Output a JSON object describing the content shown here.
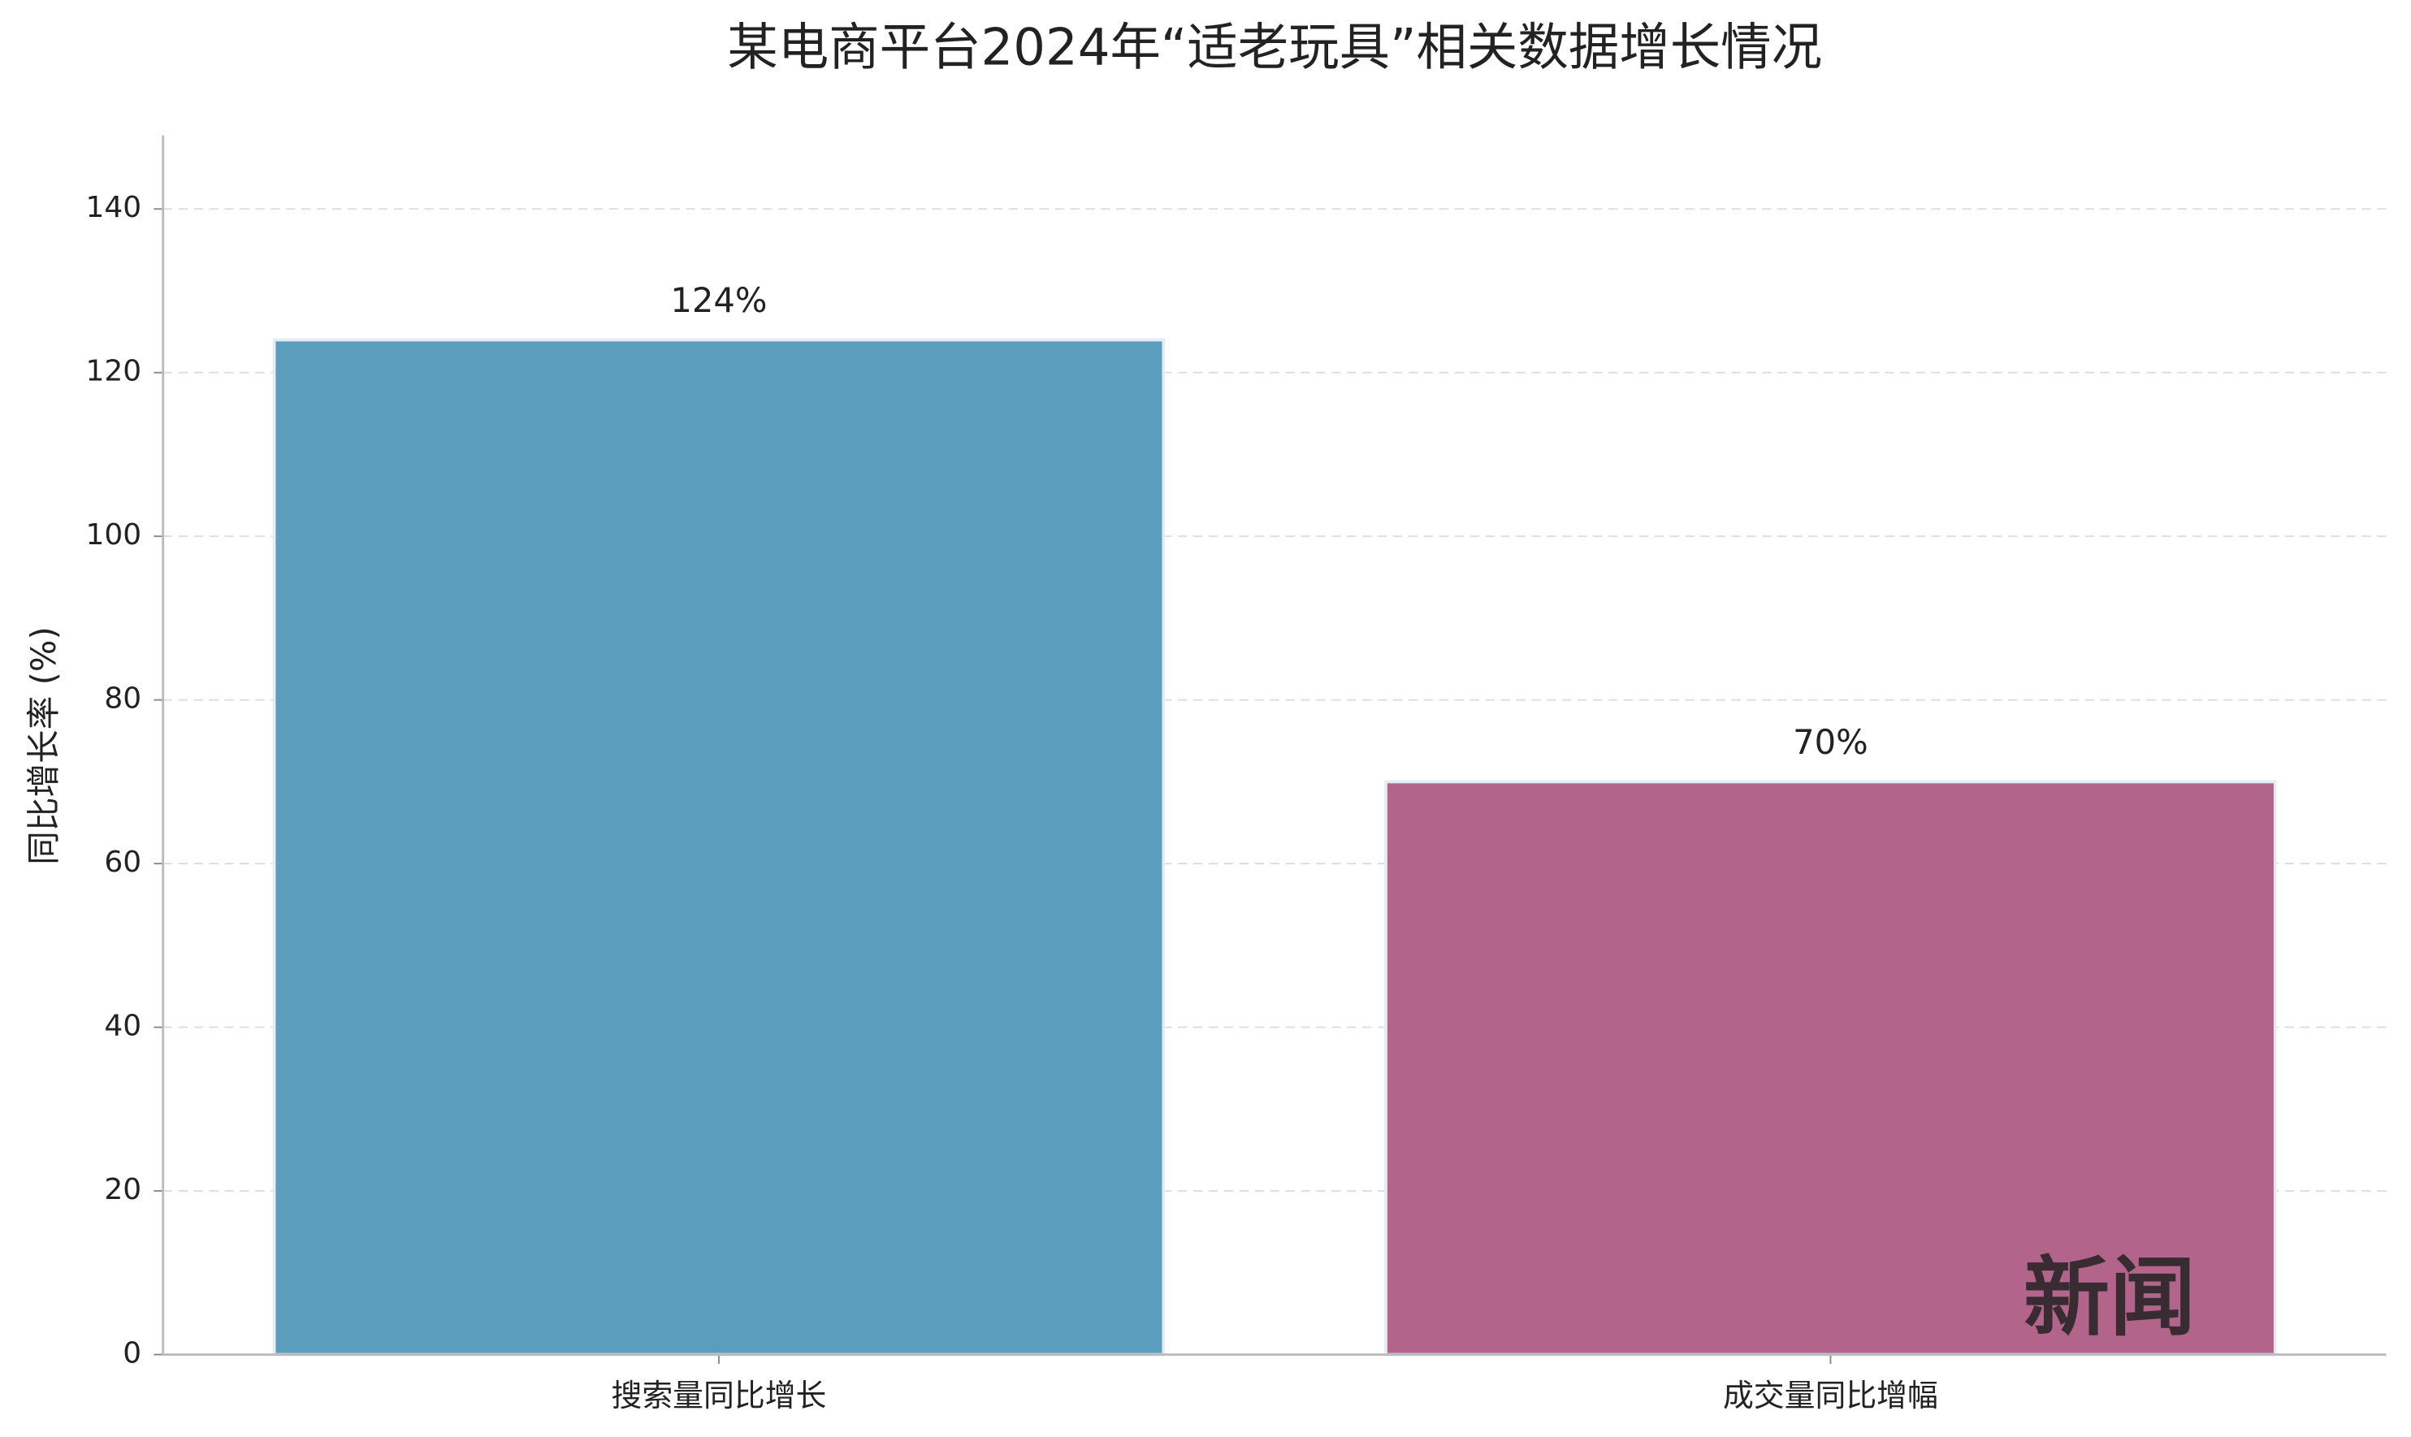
{
  "chart_data": {
    "type": "bar",
    "title": "某电商平台2024年“适老玩具”相关数据增长情况",
    "y_label": "同比增长率 (%)",
    "categories": [
      "搜索量同比增长",
      "成交量同比增幅"
    ],
    "values": [
      124,
      70
    ],
    "value_labels": [
      "124%",
      "70%"
    ],
    "colors": [
      "#5a9dbd",
      "#b3648a"
    ],
    "ylim": [
      0,
      149
    ],
    "yticks": [
      0,
      20,
      40,
      60,
      80,
      100,
      120,
      140
    ],
    "grid": true,
    "watermark": "新闻"
  }
}
